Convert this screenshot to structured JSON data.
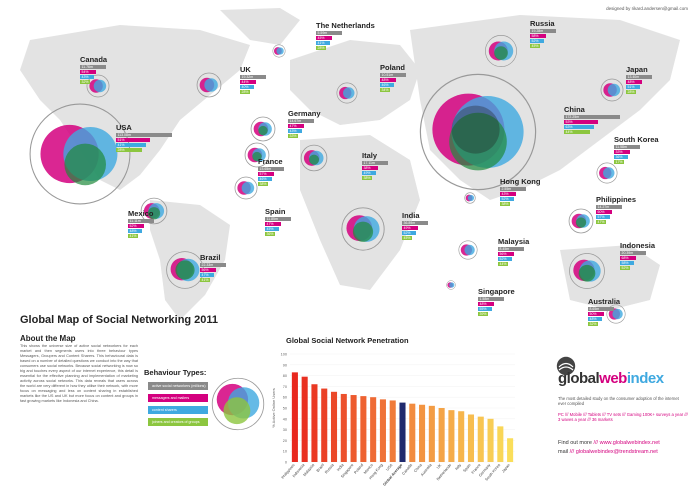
{
  "credit": "designed by rikard.andersen@gmail.com",
  "title": "Global Map of Social Networking 2011",
  "about": {
    "heading": "About the Map",
    "text": "This shows the universe size of active social networkers for each market and then segments users into three behaviour types Messagers, Groupers and Content Sharers. This behavioural data is based on a number of detailed questions we conduct into the way that consumers use social networks. Because social networking is now so big and touches every aspect of our internet experience, this detail is essential for the effective planning and implementation of marketing activity across social networks. This data reveals that users across the world are very different in how they utilise their network, with more focus on messaging and less on content sharing in established markets like the US and UK but more focus on content and groups in fast growing markets like Indonesia and China."
  },
  "behaviour": {
    "heading": "Behaviour Types:",
    "items": [
      {
        "label": "active social networkers (millions)",
        "color": "#8a8a8a"
      },
      {
        "label": "messagers and mailers",
        "color": "#d4007f"
      },
      {
        "label": "content sharers",
        "color": "#3fa9e0"
      },
      {
        "label": "joiners and creators of groups",
        "color": "#8cc63f"
      }
    ]
  },
  "countries": [
    {
      "name": "Canada",
      "bars": [
        "11.76m",
        "54%",
        "43%",
        "32%"
      ]
    },
    {
      "name": "USA",
      "bars": [
        "113.08m",
        "51%",
        "41%",
        "28%"
      ]
    },
    {
      "name": "Mexico",
      "bars": [
        "11.11m",
        "52%",
        "48%",
        "41%"
      ]
    },
    {
      "name": "Brazil",
      "bars": [
        "22.33m",
        "56%",
        "47%",
        "41%"
      ]
    },
    {
      "name": "UK",
      "bars": [
        "19.32m",
        "44%",
        "40%",
        "28%"
      ]
    },
    {
      "name": "The Netherlands",
      "bars": [
        "5.59m",
        "45%",
        "41%",
        "28%"
      ]
    },
    {
      "name": "Germany",
      "bars": [
        "14.67m",
        "47%",
        "43%",
        "33%"
      ]
    },
    {
      "name": "France",
      "bars": [
        "15.65m",
        "57%",
        "46%",
        "38%"
      ]
    },
    {
      "name": "Spain",
      "bars": [
        "11.85m",
        "47%",
        "45%",
        "36%"
      ]
    },
    {
      "name": "Italy",
      "bars": [
        "17.11m",
        "38%",
        "49%",
        "38%"
      ]
    },
    {
      "name": "Poland",
      "bars": [
        "10.51m",
        "48%",
        "46%",
        "34%"
      ]
    },
    {
      "name": "Russia",
      "bars": [
        "19.28m",
        "58%",
        "52%",
        "45%"
      ]
    },
    {
      "name": "India",
      "bars": [
        "36.89m",
        "49%",
        "52%",
        "45%"
      ]
    },
    {
      "name": "China",
      "bars": [
        "172.25m",
        "53%",
        "63%",
        "44%"
      ]
    },
    {
      "name": "Hong Kong",
      "bars": [
        "2.55m",
        "43%",
        "52%",
        "38%"
      ]
    },
    {
      "name": "Japan",
      "bars": [
        "13.40m",
        "48%",
        "51%",
        "28%"
      ]
    },
    {
      "name": "South Korea",
      "bars": [
        "11.58m",
        "33%",
        "36%",
        "17%"
      ]
    },
    {
      "name": "Philippines",
      "bars": [
        "14.27m",
        "60%",
        "57%",
        "47%"
      ]
    },
    {
      "name": "Malaysia",
      "bars": [
        "8.45m",
        "56%",
        "52%",
        "44%"
      ]
    },
    {
      "name": "Singapore",
      "bars": [
        "1.58m",
        "48%",
        "55%",
        "39%"
      ]
    },
    {
      "name": "Indonesia",
      "bars": [
        "20.39m",
        "68%",
        "58%",
        "52%"
      ]
    },
    {
      "name": "Australia",
      "bars": [
        "8.65m",
        "50%",
        "48%",
        "32%"
      ]
    }
  ],
  "chart_data": {
    "type": "bar",
    "title": "Global Social Network Penetration",
    "ylabel": "% Active Online Users",
    "ylim": [
      0,
      100
    ],
    "yticks": [
      "100",
      "90",
      "80",
      "70",
      "60",
      "50",
      "40",
      "30",
      "20",
      "10",
      "0"
    ],
    "highlight": "Global Average",
    "categories": [
      "Philippines",
      "Indonesia",
      "Malaysia",
      "Brazil",
      "Russia",
      "India",
      "Singapore",
      "Poland",
      "Mexico",
      "Hong Kong",
      "USA",
      "Global Average",
      "Canada",
      "China",
      "Australia",
      "UK",
      "Netherlands",
      "Italy",
      "Spain",
      "France",
      "Germany",
      "South Korea",
      "Japan"
    ],
    "values": [
      83,
      79,
      72,
      68,
      65,
      63,
      62,
      61,
      60,
      58,
      57,
      55,
      54,
      53,
      52,
      50,
      48,
      47,
      44,
      42,
      40,
      33,
      22
    ]
  },
  "gwi": {
    "brand_global": "global",
    "brand_web": "web",
    "brand_index": "index",
    "p1": "The most detailed study on the consumer adoption of the internet ever compiled",
    "p2": "PC /// Mobile /// Tablets /// TV sets /// Gaming 100K+ surveys a year /// 3 waves a year /// 36 markets",
    "find_label": "Find out more",
    "find_url": "www.globalwebindex.net",
    "mail_label": "mail",
    "mail_addr": "globalwebindex@trendstream.net",
    "sep": "///"
  }
}
